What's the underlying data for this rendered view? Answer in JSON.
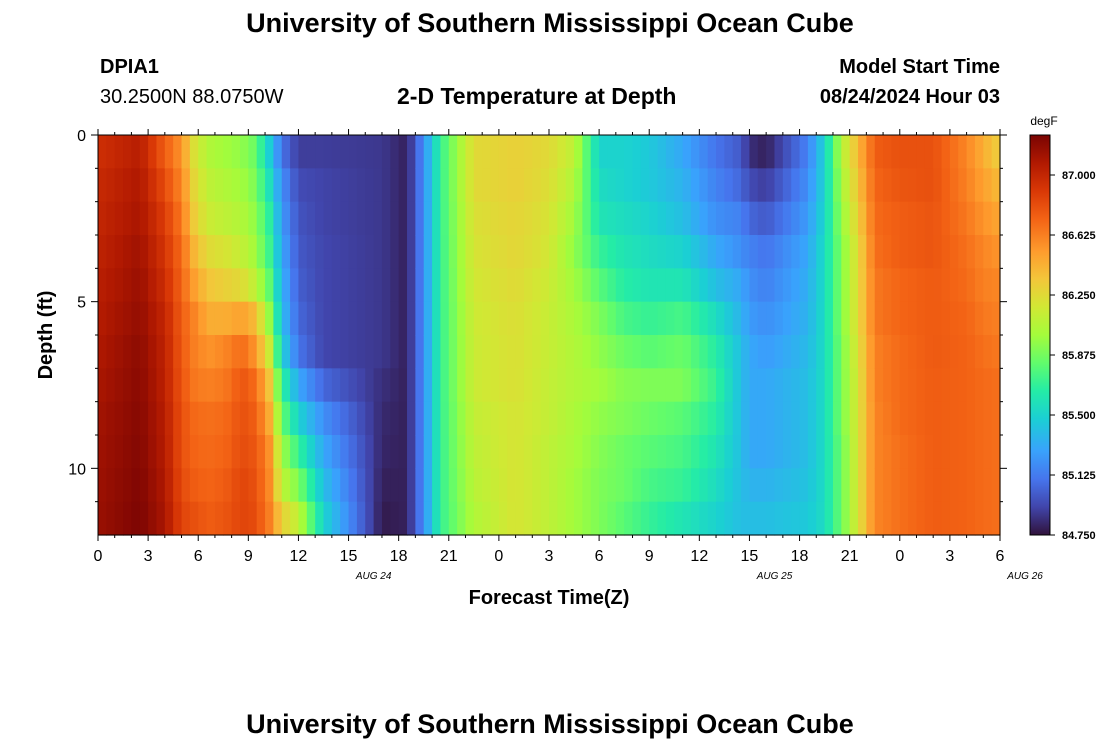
{
  "page": {
    "title": "University of Southern Mississippi Ocean Cube",
    "footer_title": "University of Southern Mississippi Ocean Cube",
    "station": "DPIA1",
    "coords": "30.2500N  88.0750W",
    "plot_title": "2-D Temperature at Depth",
    "model_label": "Model Start Time",
    "model_time": "08/24/2024 Hour 03"
  },
  "chart_data": {
    "type": "heatmap",
    "title": "2-D Temperature at Depth",
    "xlabel": "Forecast Time(Z)",
    "ylabel": "Depth (ft)",
    "x_tick_labels": [
      "0",
      "3",
      "6",
      "9",
      "12",
      "15",
      "18",
      "21",
      "0",
      "3",
      "6",
      "9",
      "12",
      "15",
      "18",
      "21",
      "0",
      "3",
      "6"
    ],
    "date_labels": [
      {
        "label": "AUG 24",
        "tick_index": 5.5
      },
      {
        "label": "AUG 25",
        "tick_index": 13.5
      },
      {
        "label": "AUG 26",
        "tick_index": 18.5
      }
    ],
    "x_range_hours": [
      0,
      54
    ],
    "y_tick_values": [
      0,
      5,
      10
    ],
    "y_range_ft": [
      0,
      12
    ],
    "colorbar": {
      "unit": "degF",
      "min": 84.75,
      "max": 87.25,
      "tick_values": [
        87.0,
        86.625,
        86.25,
        85.875,
        85.5,
        85.125,
        84.75
      ],
      "tick_labels": [
        "87.000",
        "86.625",
        "86.250",
        "85.875",
        "85.500",
        "85.125",
        "84.750"
      ]
    },
    "depth_levels_ft": [
      0.5,
      1.5,
      2.5,
      3.5,
      4.5,
      5.5,
      6.5,
      7.5,
      8.5,
      9.5,
      10.5,
      11.5
    ],
    "profile_hours": [
      0,
      2.5,
      4,
      5,
      5.8,
      6.6,
      7.6,
      8.6,
      9.4,
      10.2,
      11,
      12,
      13.5,
      17,
      18.5,
      19.5,
      20.5,
      22.5,
      25,
      27,
      28.5,
      30,
      31.5,
      33,
      35,
      37,
      38.5,
      39,
      40,
      42.5,
      43.5,
      44.5,
      45.5,
      46.5,
      48,
      50,
      52,
      53,
      54
    ],
    "profiles_degF": [
      [
        86.95,
        86.98,
        87.0,
        87.02,
        87.04,
        87.06,
        87.08,
        87.1,
        87.12,
        87.13,
        87.14,
        87.15
      ],
      [
        87.05,
        87.08,
        87.1,
        87.13,
        87.15,
        87.17,
        87.19,
        87.2,
        87.21,
        87.22,
        87.23,
        87.24
      ],
      [
        86.75,
        86.82,
        86.88,
        86.92,
        86.96,
        87.0,
        87.02,
        87.03,
        87.05,
        87.06,
        87.08,
        87.1
      ],
      [
        86.55,
        86.6,
        86.65,
        86.7,
        86.72,
        86.75,
        86.76,
        86.78,
        86.8,
        86.8,
        86.82,
        86.85
      ],
      [
        86.2,
        86.25,
        86.3,
        86.4,
        86.5,
        86.6,
        86.62,
        86.65,
        86.7,
        86.72,
        86.75,
        86.8
      ],
      [
        86.05,
        86.1,
        86.15,
        86.25,
        86.35,
        86.45,
        86.55,
        86.62,
        86.68,
        86.7,
        86.72,
        86.75
      ],
      [
        86.0,
        86.05,
        86.1,
        86.2,
        86.3,
        86.45,
        86.6,
        86.65,
        86.7,
        86.72,
        86.75,
        86.78
      ],
      [
        85.95,
        86.0,
        86.05,
        86.12,
        86.25,
        86.5,
        86.7,
        86.78,
        86.8,
        86.82,
        86.85,
        86.85
      ],
      [
        85.85,
        85.9,
        85.95,
        86.0,
        86.1,
        86.4,
        86.55,
        86.7,
        86.75,
        86.78,
        86.8,
        86.82
      ],
      [
        85.5,
        85.6,
        85.7,
        85.75,
        85.85,
        86.0,
        86.2,
        86.4,
        86.5,
        86.6,
        86.62,
        86.65
      ],
      [
        85.1,
        85.2,
        85.25,
        85.3,
        85.35,
        85.4,
        85.5,
        85.7,
        85.85,
        86.0,
        86.1,
        86.3
      ],
      [
        84.9,
        84.95,
        84.98,
        85.0,
        85.02,
        85.05,
        85.1,
        85.3,
        85.5,
        85.7,
        85.9,
        86.1
      ],
      [
        84.9,
        84.92,
        84.92,
        84.93,
        84.93,
        84.93,
        84.93,
        85.05,
        85.2,
        85.3,
        85.4,
        85.5
      ],
      [
        84.88,
        84.88,
        84.88,
        84.88,
        84.88,
        84.88,
        84.88,
        84.85,
        84.83,
        84.82,
        84.8,
        84.78
      ],
      [
        84.8,
        84.8,
        84.8,
        84.8,
        84.8,
        84.8,
        84.8,
        84.8,
        84.8,
        84.8,
        84.8,
        84.8
      ],
      [
        85.2,
        85.2,
        85.2,
        85.2,
        85.2,
        85.2,
        85.2,
        85.2,
        85.2,
        85.2,
        85.2,
        85.2
      ],
      [
        85.7,
        85.7,
        85.7,
        85.7,
        85.7,
        85.7,
        85.7,
        85.7,
        85.7,
        85.7,
        85.7,
        85.7
      ],
      [
        86.25,
        86.25,
        86.22,
        86.2,
        86.18,
        86.16,
        86.15,
        86.15,
        86.12,
        86.1,
        86.08,
        86.05
      ],
      [
        86.3,
        86.3,
        86.28,
        86.27,
        86.25,
        86.23,
        86.22,
        86.22,
        86.2,
        86.2,
        86.2,
        86.2
      ],
      [
        86.25,
        86.23,
        86.2,
        86.18,
        86.15,
        86.13,
        86.13,
        86.12,
        86.12,
        86.1,
        86.1,
        86.1
      ],
      [
        86.1,
        86.05,
        86.0,
        85.95,
        86.0,
        86.03,
        86.05,
        86.05,
        86.03,
        86.02,
        86.0,
        86.0
      ],
      [
        85.5,
        85.55,
        85.6,
        85.7,
        85.8,
        85.9,
        85.95,
        86.0,
        85.95,
        85.92,
        85.9,
        85.9
      ],
      [
        85.5,
        85.5,
        85.55,
        85.6,
        85.65,
        85.75,
        85.85,
        85.92,
        85.9,
        85.85,
        85.85,
        85.8
      ],
      [
        85.45,
        85.45,
        85.5,
        85.55,
        85.6,
        85.7,
        85.8,
        85.9,
        85.85,
        85.8,
        85.75,
        85.7
      ],
      [
        85.3,
        85.35,
        85.4,
        85.5,
        85.6,
        85.75,
        85.85,
        85.9,
        85.8,
        85.75,
        85.7,
        85.6
      ],
      [
        85.1,
        85.15,
        85.2,
        85.3,
        85.4,
        85.55,
        85.65,
        85.7,
        85.65,
        85.6,
        85.55,
        85.5
      ],
      [
        85.0,
        85.05,
        85.15,
        85.2,
        85.3,
        85.35,
        85.4,
        85.4,
        85.4,
        85.4,
        85.4,
        85.4
      ],
      [
        84.85,
        84.95,
        85.05,
        85.15,
        85.2,
        85.25,
        85.3,
        85.3,
        85.3,
        85.3,
        85.35,
        85.4
      ],
      [
        84.8,
        84.9,
        85.0,
        85.1,
        85.15,
        85.2,
        85.25,
        85.3,
        85.3,
        85.3,
        85.35,
        85.4
      ],
      [
        85.15,
        85.2,
        85.25,
        85.3,
        85.33,
        85.35,
        85.38,
        85.4,
        85.4,
        85.4,
        85.42,
        85.45
      ],
      [
        85.5,
        85.5,
        85.52,
        85.55,
        85.55,
        85.55,
        85.55,
        85.55,
        85.55,
        85.55,
        85.55,
        85.55
      ],
      [
        86.05,
        86.0,
        85.95,
        85.9,
        85.9,
        85.9,
        85.88,
        85.88,
        85.88,
        85.85,
        85.85,
        85.85
      ],
      [
        86.4,
        86.35,
        86.3,
        86.25,
        86.25,
        86.25,
        86.22,
        86.2,
        86.2,
        86.2,
        86.2,
        86.2
      ],
      [
        86.75,
        86.72,
        86.7,
        86.68,
        86.65,
        86.65,
        86.62,
        86.62,
        86.6,
        86.6,
        86.6,
        86.6
      ],
      [
        86.8,
        86.78,
        86.75,
        86.75,
        86.72,
        86.72,
        86.7,
        86.7,
        86.7,
        86.68,
        86.68,
        86.68
      ],
      [
        86.8,
        86.8,
        86.78,
        86.78,
        86.76,
        86.76,
        86.76,
        86.75,
        86.75,
        86.75,
        86.75,
        86.75
      ],
      [
        86.6,
        86.62,
        86.65,
        86.68,
        86.7,
        86.72,
        86.73,
        86.73,
        86.73,
        86.73,
        86.73,
        86.73
      ],
      [
        86.45,
        86.5,
        86.55,
        86.6,
        86.62,
        86.65,
        86.68,
        86.7,
        86.7,
        86.7,
        86.7,
        86.7
      ],
      [
        86.3,
        86.4,
        86.48,
        86.55,
        86.6,
        86.62,
        86.65,
        86.68,
        86.68,
        86.68,
        86.68,
        86.68
      ]
    ]
  }
}
